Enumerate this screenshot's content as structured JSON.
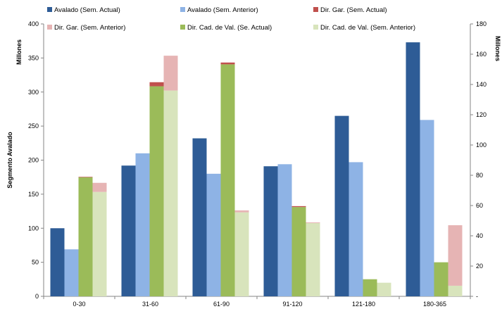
{
  "chart_data": {
    "type": "bar",
    "categories": [
      "0-30",
      "31-60",
      "61-90",
      "91-120",
      "121-180",
      "180-365"
    ],
    "ylabel": "Segmento Avalado",
    "ylabel_units": "Millones",
    "y2label_units": "Millones",
    "ylim": [
      0,
      400
    ],
    "y2lim": [
      0,
      180
    ],
    "yticks": [
      "0",
      "50",
      "100",
      "150",
      "200",
      "250",
      "300",
      "350",
      "400"
    ],
    "y2ticks": [
      "-",
      "20",
      "40",
      "60",
      "80",
      "100",
      "120",
      "140",
      "160",
      "180"
    ],
    "grid": false,
    "legend_placement": "top",
    "series": [
      {
        "name": "Avalado (Sem. Actual)",
        "axis": "left",
        "color": "#2e5c96",
        "values": [
          100,
          192,
          232,
          191,
          265,
          373
        ]
      },
      {
        "name": "Avalado (Sem. Anterior)",
        "axis": "left",
        "color": "#8eb3e5",
        "values": [
          69,
          210,
          180,
          194,
          197,
          259
        ]
      },
      {
        "name": "Dir. Gar. (Sem. Actual)",
        "axis": "right",
        "color": "#c0504d",
        "stack_on": "Dir. Cad. de Val. (Se. Actual)",
        "values": [
          0.3,
          2.7,
          1.2,
          0.6,
          0,
          0
        ]
      },
      {
        "name": "Dir. Gar. (Sem. Anterior)",
        "axis": "right",
        "color": "#e6b4b4",
        "stack_on": "Dir. Cad. de Val. (Sem. Anterior)",
        "values": [
          6,
          23,
          1.3,
          0.5,
          0,
          40
        ]
      },
      {
        "name": "Dir. Cad. de Val. (Se. Actual)",
        "axis": "right",
        "color": "#9bbb59",
        "values": [
          78.7,
          138.8,
          153.3,
          59,
          11.3,
          22.5
        ]
      },
      {
        "name": "Dir. Cad. de Val. (Sem. Anterior)",
        "axis": "right",
        "color": "#d8e4bc",
        "values": [
          69,
          136,
          55.5,
          48.4,
          9,
          7
        ]
      }
    ]
  }
}
